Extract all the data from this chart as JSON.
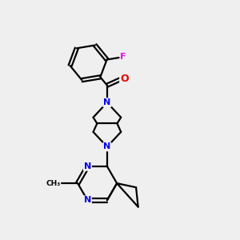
{
  "background_color": "#efefef",
  "bond_color": "#000000",
  "nitrogen_color": "#0000ee",
  "oxygen_color": "#ee0000",
  "fluorine_color": "#ee00ee",
  "figsize": [
    3.0,
    3.0
  ],
  "dpi": 100,
  "xlim": [
    0,
    10
  ],
  "ylim": [
    0,
    10
  ]
}
